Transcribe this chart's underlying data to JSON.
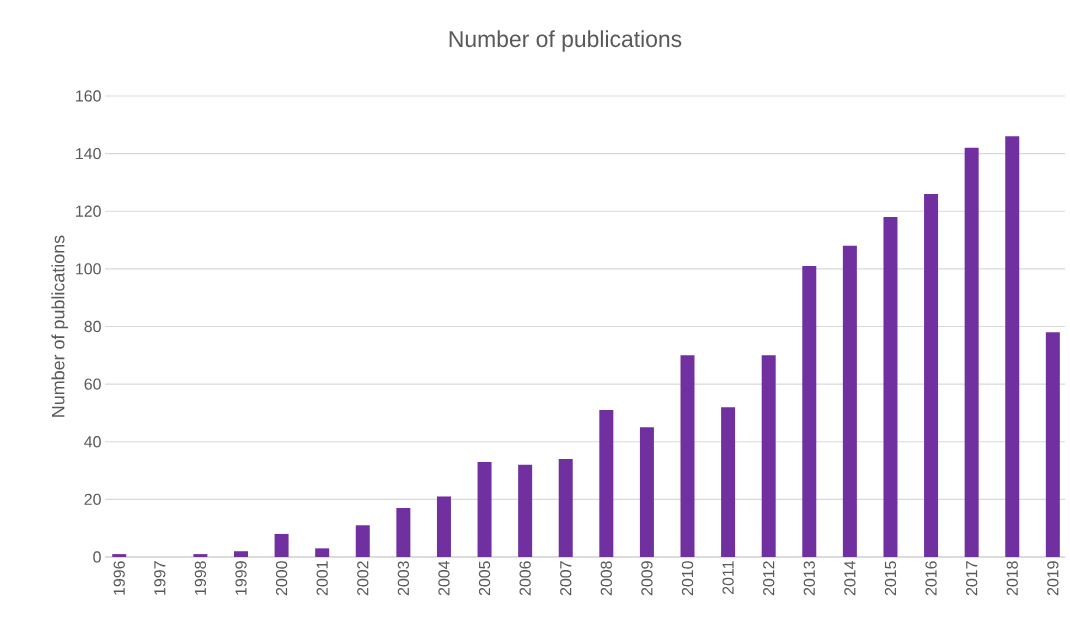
{
  "chart_data": {
    "type": "bar",
    "title": "Number of publications",
    "ylabel": "Number of publications",
    "categories": [
      "1996",
      "1997",
      "1998",
      "1999",
      "2000",
      "2001",
      "2002",
      "2003",
      "2004",
      "2005",
      "2006",
      "2007",
      "2008",
      "2009",
      "2010",
      "2011",
      "2012",
      "2013",
      "2014",
      "2015",
      "2016",
      "2017",
      "2018",
      "2019"
    ],
    "values": [
      1,
      0,
      1,
      2,
      8,
      3,
      11,
      17,
      21,
      33,
      32,
      34,
      51,
      45,
      70,
      52,
      70,
      101,
      108,
      118,
      126,
      142,
      146,
      78
    ],
    "color": "#7030a0",
    "ylim": [
      0,
      160
    ],
    "yticks": [
      0,
      20,
      40,
      60,
      80,
      100,
      120,
      140,
      160
    ],
    "grid": "y"
  }
}
